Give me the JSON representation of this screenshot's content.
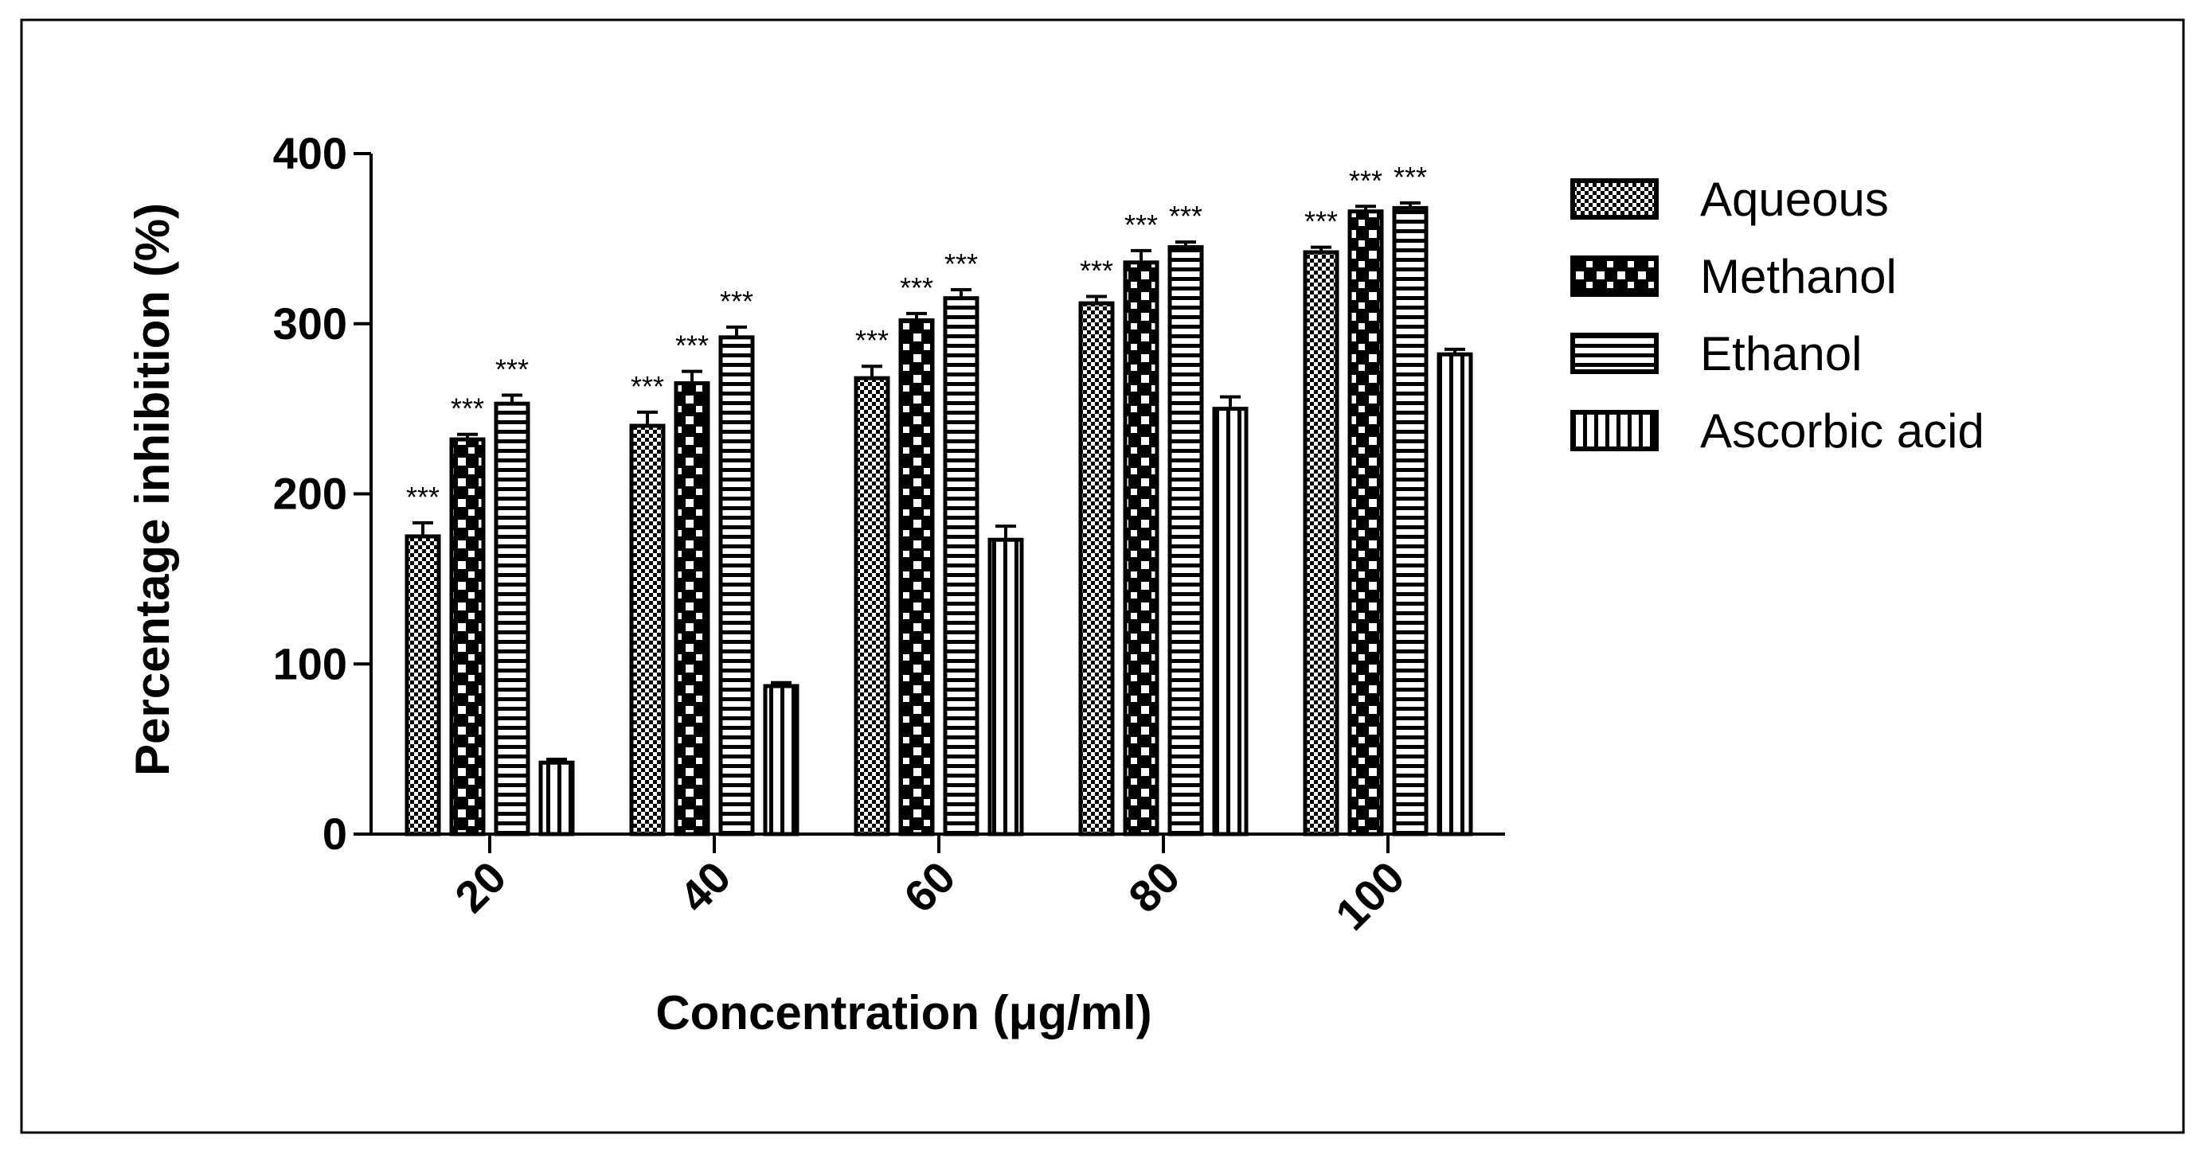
{
  "chart_data": {
    "type": "bar",
    "title": "",
    "xlabel": "Concentration (μg/ml)",
    "ylabel": "Percentage inhibition (%)",
    "ylim": [
      0,
      400
    ],
    "yticks": [
      0,
      100,
      200,
      300,
      400
    ],
    "categories": [
      "20",
      "40",
      "60",
      "80",
      "100"
    ],
    "series": [
      {
        "name": "Aqueous",
        "pattern": "fine-checker",
        "values": [
          175,
          240,
          268,
          312,
          342
        ],
        "errors": [
          8,
          8,
          7,
          4,
          3
        ],
        "annotations": [
          "***",
          "***",
          "***",
          "***",
          "***"
        ]
      },
      {
        "name": "Methanol",
        "pattern": "coarse-checker",
        "values": [
          232,
          265,
          302,
          336,
          366
        ],
        "errors": [
          3,
          7,
          4,
          7,
          3
        ],
        "annotations": [
          "***",
          "***",
          "***",
          "***",
          "***"
        ]
      },
      {
        "name": "Ethanol",
        "pattern": "horizontal-lines",
        "values": [
          253,
          292,
          315,
          345,
          368
        ],
        "errors": [
          5,
          6,
          5,
          3,
          3
        ],
        "annotations": [
          "***",
          "***",
          "***",
          "***",
          "***"
        ]
      },
      {
        "name": "Ascorbic acid",
        "pattern": "vertical-lines",
        "values": [
          42,
          87,
          173,
          250,
          282
        ],
        "errors": [
          2,
          2,
          8,
          7,
          3
        ],
        "annotations": [
          "",
          "",
          "",
          "",
          ""
        ]
      }
    ],
    "legend_position": "right",
    "grid": false
  }
}
